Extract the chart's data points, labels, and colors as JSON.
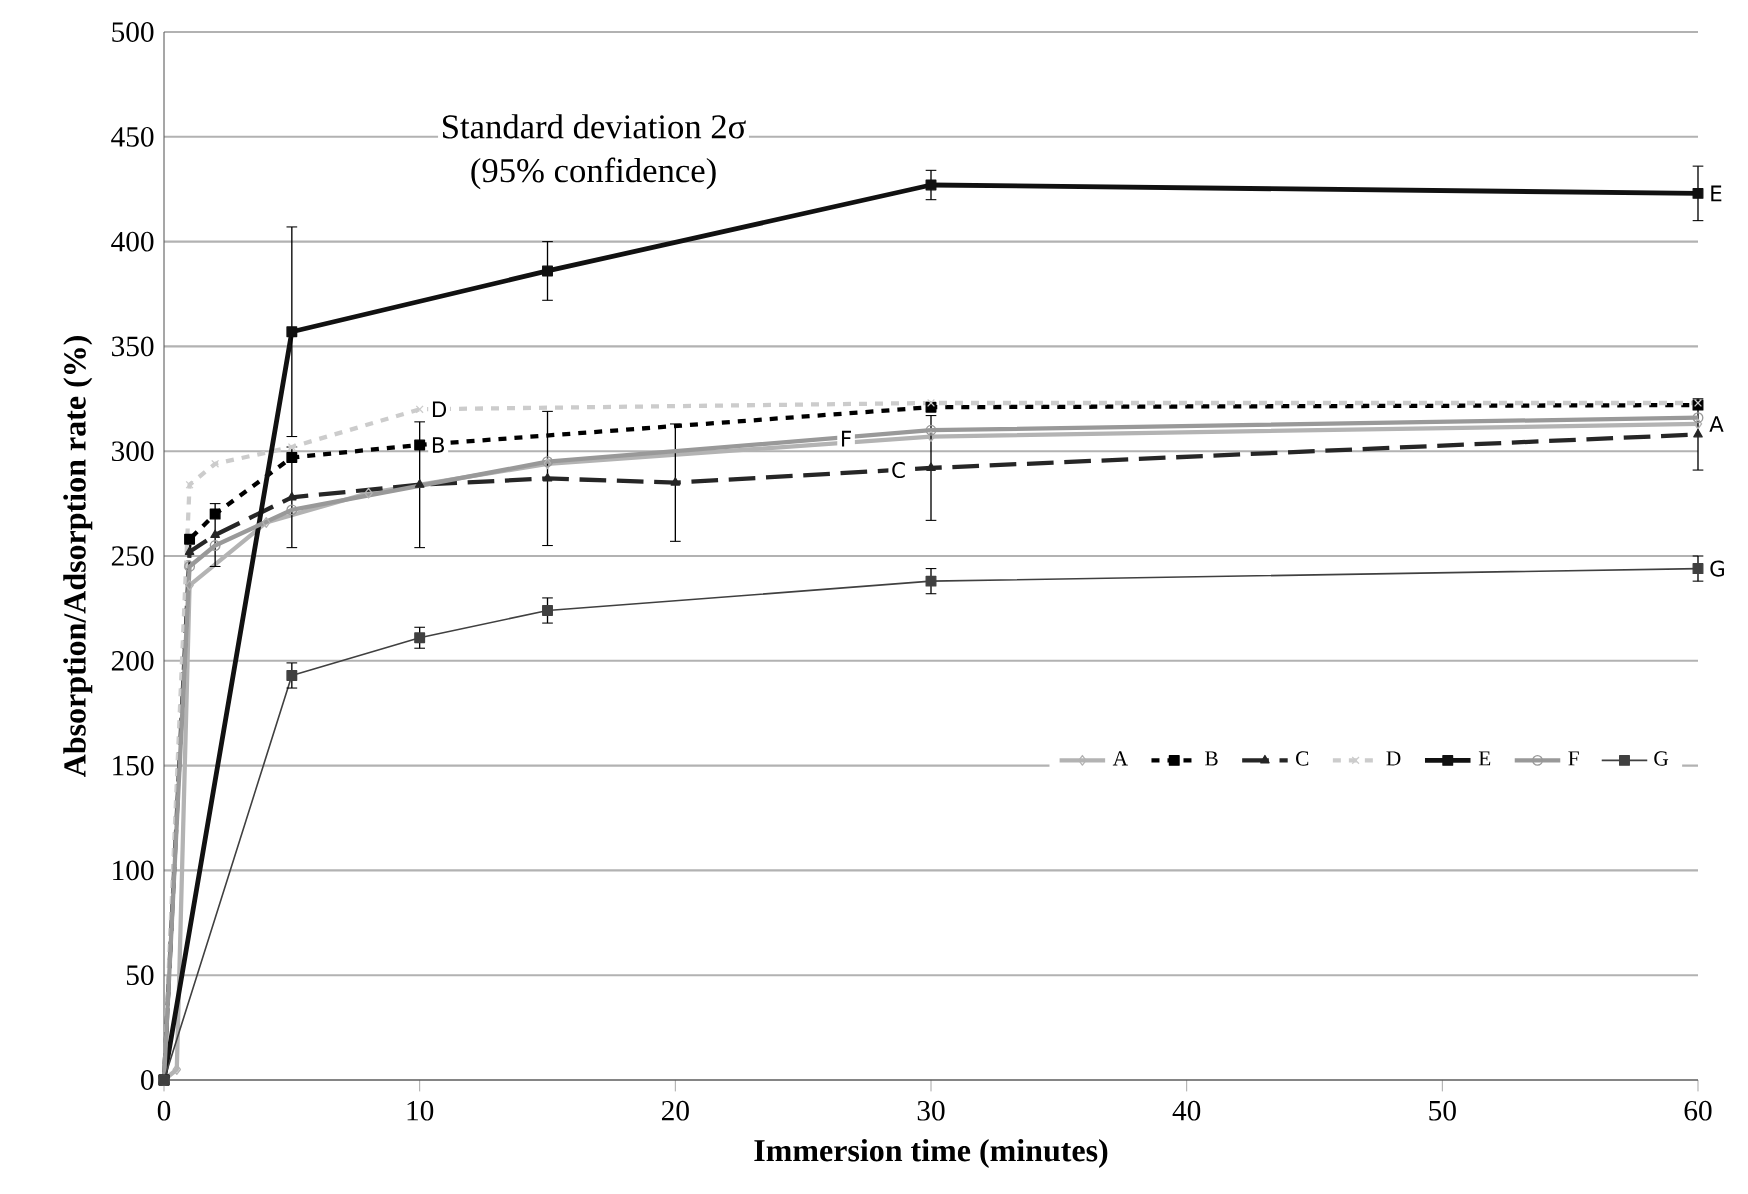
{
  "chart_data": {
    "type": "line",
    "xlabel": "Immersion time (minutes)",
    "ylabel": "Absorption/Adsorption rate (%)",
    "xlim": [
      0,
      60
    ],
    "xticks": [
      0,
      10,
      20,
      30,
      40,
      50,
      60
    ],
    "ylim": [
      0,
      500
    ],
    "yticks": [
      0,
      50,
      100,
      150,
      200,
      250,
      300,
      350,
      400,
      450,
      500
    ],
    "grid": "y",
    "legend": "right",
    "series": [
      {
        "name": "A",
        "color": "#b3b3b3",
        "line_style": "solid",
        "marker": "diamond",
        "x": [
          0,
          0.5,
          1,
          4,
          8,
          15,
          30,
          60
        ],
        "values": [
          0,
          5,
          236,
          266,
          280,
          294,
          307,
          313
        ]
      },
      {
        "name": "B",
        "color": "#000000",
        "line_style": "dashed",
        "marker": "square",
        "x": [
          0,
          1,
          2,
          5,
          10,
          30,
          60
        ],
        "values": [
          0,
          258,
          270,
          297,
          303,
          321,
          322
        ]
      },
      {
        "name": "C",
        "color": "#262626",
        "line_style": "dashed",
        "marker": "triangle",
        "x": [
          0,
          1,
          2,
          5,
          10,
          15,
          20,
          30,
          60
        ],
        "values": [
          0,
          252,
          260,
          278,
          284,
          287,
          285,
          292,
          308
        ],
        "errors": [
          null,
          null,
          15,
          24,
          30,
          32,
          28,
          25,
          17
        ]
      },
      {
        "name": "D",
        "color": "#cccccc",
        "line_style": "dashed",
        "marker": "cross",
        "x": [
          0,
          1,
          2,
          5,
          10,
          30,
          60
        ],
        "values": [
          0,
          284,
          294,
          302,
          320,
          323,
          323
        ]
      },
      {
        "name": "E",
        "color": "#111111",
        "line_style": "solid",
        "marker": "square",
        "x": [
          0,
          5,
          15,
          30,
          60
        ],
        "values": [
          0,
          357,
          386,
          427,
          423
        ],
        "errors": [
          null,
          50,
          14,
          7,
          13
        ]
      },
      {
        "name": "F",
        "color": "#999999",
        "line_style": "solid",
        "marker": "circle",
        "x": [
          0,
          1,
          2,
          5,
          15,
          30,
          60
        ],
        "values": [
          0,
          245,
          255,
          272,
          295,
          310,
          316
        ]
      },
      {
        "name": "G",
        "color": "#404040",
        "line_style": "solid",
        "marker": "square",
        "x": [
          0,
          5,
          10,
          15,
          30,
          60
        ],
        "values": [
          0,
          193,
          211,
          224,
          238,
          244
        ],
        "errors": [
          null,
          6,
          5,
          6,
          6,
          6
        ]
      }
    ],
    "annotations": [
      "Standard deviation 2σ",
      "(95% confidence)",
      {
        "text": "D",
        "x": 10,
        "y": 320
      },
      {
        "text": "B",
        "x": 10,
        "y": 303
      },
      {
        "text": "F",
        "x": 26,
        "y": 306
      },
      {
        "text": "C",
        "x": 28,
        "y": 291
      },
      {
        "text": "E",
        "x": 60,
        "y": 423
      },
      {
        "text": "A",
        "x": 60,
        "y": 313
      },
      {
        "text": "G",
        "x": 60,
        "y": 244
      }
    ]
  }
}
